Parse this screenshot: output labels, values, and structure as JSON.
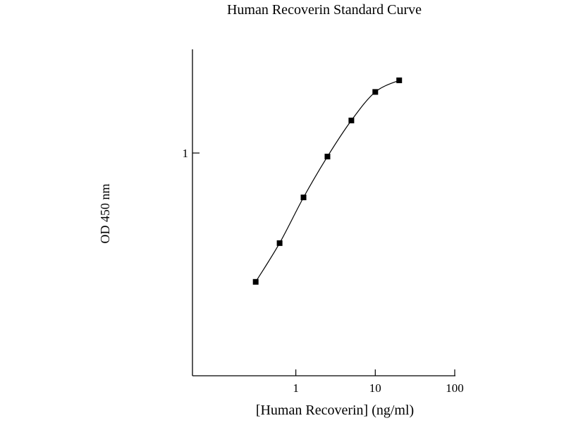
{
  "chart_data": {
    "type": "line",
    "title": "Human Recoverin Standard Curve",
    "xlabel": "[Human Recoverin] (ng/ml)",
    "ylabel": "OD 450 nm",
    "x_scale": "log",
    "y_scale": "log",
    "xlim": [
      0.05,
      100
    ],
    "ylim": [
      0.1,
      2.92
    ],
    "x_ticks": [
      1,
      10,
      100
    ],
    "x_tick_labels": [
      "1",
      "10",
      "100"
    ],
    "y_ticks": [
      1
    ],
    "y_tick_labels": [
      "1"
    ],
    "grid": false,
    "marker": "square",
    "line_style": "smooth",
    "color": "#000000",
    "x": [
      0.3125,
      0.625,
      1.25,
      2.5,
      5,
      10,
      20
    ],
    "y": [
      0.264,
      0.394,
      0.632,
      0.964,
      1.4,
      1.88,
      2.12
    ]
  }
}
